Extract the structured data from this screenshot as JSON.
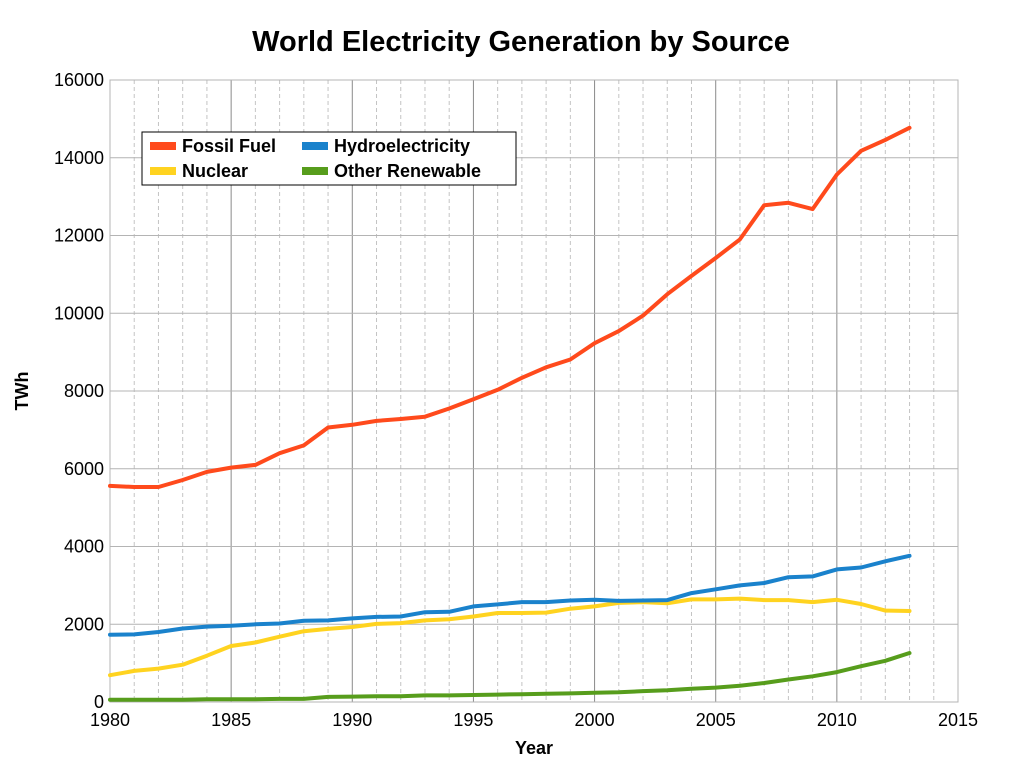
{
  "chart_data": {
    "type": "line",
    "title": "World Electricity Generation by Source",
    "xlabel": "Year",
    "ylabel": "TWh",
    "xlim": [
      1980,
      2015
    ],
    "ylim": [
      0,
      16000
    ],
    "x_ticks": [
      1980,
      1985,
      1990,
      1995,
      2000,
      2005,
      2010,
      2015
    ],
    "y_ticks": [
      0,
      2000,
      4000,
      6000,
      8000,
      10000,
      12000,
      14000,
      16000
    ],
    "grid": true,
    "legend_placement": "top-left",
    "x": [
      1980,
      1981,
      1982,
      1983,
      1984,
      1985,
      1986,
      1987,
      1988,
      1989,
      1990,
      1991,
      1992,
      1993,
      1994,
      1995,
      1996,
      1997,
      1998,
      1999,
      2000,
      2001,
      2002,
      2003,
      2004,
      2005,
      2006,
      2007,
      2008,
      2009,
      2010,
      2011,
      2012,
      2013
    ],
    "series": [
      {
        "name": "Fossil Fuel",
        "color": "#ff4a1c",
        "values": [
          5560,
          5530,
          5530,
          5710,
          5920,
          6030,
          6100,
          6400,
          6600,
          7060,
          7130,
          7230,
          7280,
          7340,
          7550,
          7790,
          8030,
          8340,
          8610,
          8810,
          9230,
          9540,
          9940,
          10490,
          10960,
          11420,
          11900,
          12780,
          12840,
          12680,
          13570,
          14180,
          14460,
          14770
        ]
      },
      {
        "name": "Hydroelectricity",
        "color": "#1a82cc",
        "values": [
          1730,
          1740,
          1800,
          1890,
          1940,
          1960,
          2000,
          2020,
          2090,
          2100,
          2150,
          2190,
          2200,
          2310,
          2320,
          2460,
          2510,
          2570,
          2570,
          2610,
          2630,
          2600,
          2610,
          2620,
          2800,
          2900,
          3000,
          3060,
          3210,
          3230,
          3410,
          3460,
          3620,
          3760
        ]
      },
      {
        "name": "Nuclear",
        "color": "#ffd320",
        "values": [
          690,
          800,
          860,
          960,
          1190,
          1440,
          1530,
          1680,
          1820,
          1880,
          1930,
          2010,
          2030,
          2100,
          2130,
          2200,
          2290,
          2290,
          2300,
          2400,
          2460,
          2550,
          2570,
          2540,
          2640,
          2640,
          2660,
          2620,
          2620,
          2570,
          2630,
          2520,
          2350,
          2340
        ]
      },
      {
        "name": "Other Renewable",
        "color": "#579d1c",
        "values": [
          60,
          60,
          60,
          60,
          70,
          70,
          70,
          80,
          80,
          130,
          140,
          150,
          150,
          170,
          170,
          180,
          190,
          200,
          210,
          220,
          240,
          250,
          280,
          300,
          340,
          370,
          420,
          490,
          580,
          660,
          770,
          920,
          1060,
          1260
        ]
      }
    ],
    "legend_order": [
      "Fossil Fuel",
      "Hydroelectricity",
      "Nuclear",
      "Other Renewable"
    ]
  }
}
